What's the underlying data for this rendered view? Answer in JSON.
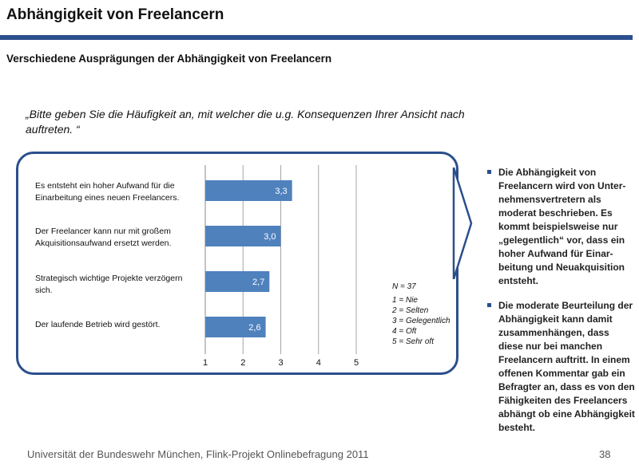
{
  "header": {
    "title": "Abhängigkeit von Freelancern",
    "subtitle": "Verschiedene Ausprägungen der Abhängigkeit von Freelancern"
  },
  "question": "„Bitte geben Sie die Häufigkeit an, mit welcher die u.g. Konsequenzen Ihrer Ansicht nach auftreten. “",
  "legend": {
    "n": "N = 37",
    "items": [
      "1 = Nie",
      "2 = Selten",
      "3 = Gelegentlich",
      "4 = Oft",
      "5 = Sehr oft"
    ]
  },
  "chart_data": {
    "type": "bar",
    "orientation": "horizontal",
    "categories": [
      "Es entsteht ein hoher Aufwand für die Einarbeitung eines neuen Freelancers.",
      "Der Freelancer kann nur mit großem Akquisitionsaufwand ersetzt werden.",
      "Strategisch wichtige Projekte verzögern sich.",
      "Der laufende Betrieb wird gestört."
    ],
    "values": [
      3.3,
      3.0,
      2.7,
      2.6
    ],
    "value_labels": [
      "3,3",
      "3,0",
      "2,7",
      "2,6"
    ],
    "xlim": [
      1,
      5
    ],
    "xticks": [
      "1",
      "2",
      "3",
      "4",
      "5"
    ],
    "grid": true,
    "bar_color": "#4f81bd"
  },
  "bullets": [
    "Die Abhängigkeit von Freelancern wird von Unter-nehmensvertretern als moderat beschrieben. Es kommt beispielsweise nur „gelegentlich“ vor, dass ein hoher Aufwand für Einar-beitung und Neuakquisition entsteht.",
    "Die moderate Beurteilung der Abhängigkeit kann damit zusammenhängen, dass diese nur bei manchen Freelancern auftritt. In einem offenen Kommentar gab ein Befragter an, dass es von den Fähigkeiten des Freelancers abhängt ob eine Abhängigkeit besteht."
  ],
  "footer": {
    "text": "Universität der Bundeswehr München, Flink-Projekt Onlinebefragung  2011",
    "page": "38"
  }
}
